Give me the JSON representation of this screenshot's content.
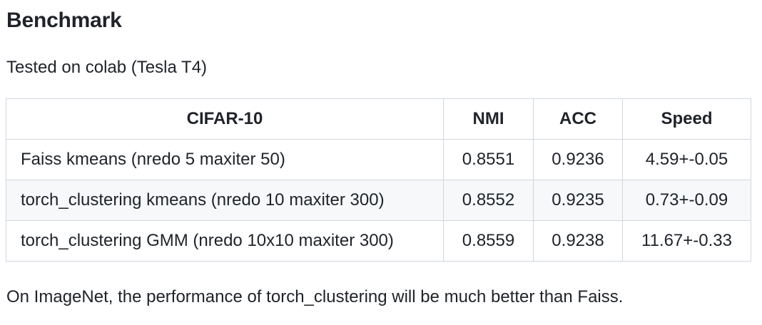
{
  "heading": "Benchmark",
  "intro": "Tested on colab (Tesla T4)",
  "table": {
    "headers": [
      "CIFAR-10",
      "NMI",
      "ACC",
      "Speed"
    ],
    "rows": [
      [
        "Faiss kmeans (nredo 5 maxiter 50)",
        "0.8551",
        "0.9236",
        "4.59+-0.05"
      ],
      [
        "torch_clustering kmeans (nredo 10 maxiter 300)",
        "0.8552",
        "0.9235",
        "0.73+-0.09"
      ],
      [
        "torch_clustering GMM (nredo 10x10 maxiter 300)",
        "0.8559",
        "0.9238",
        "11.67+-0.33"
      ]
    ]
  },
  "footer_text": "On ImageNet, the performance of torch_clustering will be much better than Faiss.",
  "colors": {
    "text": "#1f2328",
    "border": "#d0d7de",
    "alt_row_bg": "#f6f8fa"
  }
}
